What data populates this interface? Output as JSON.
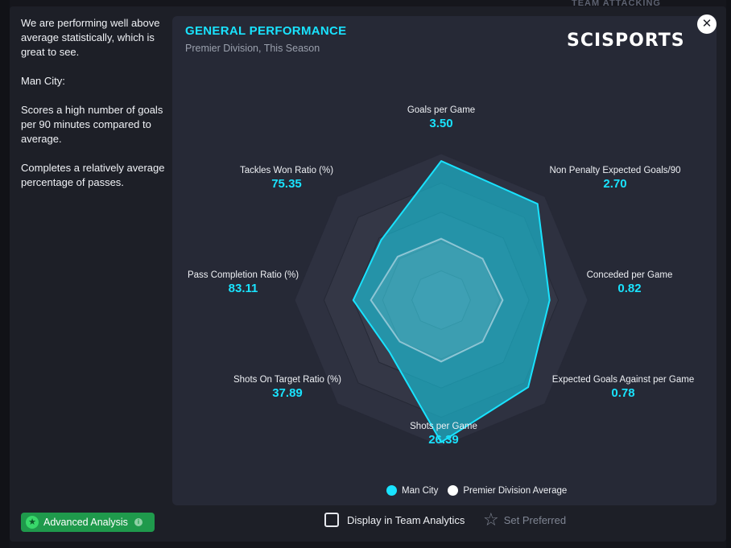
{
  "backdrop": {
    "fragment_text": "TEAM ATTACKING"
  },
  "insight": {
    "paragraphs": [
      "We are performing well above average statistically, which is great to see.",
      "Man City:",
      "Scores a high number of goals per 90 minutes compared to average.",
      "Completes a relatively average percentage of passes."
    ]
  },
  "card": {
    "title": "GENERAL PERFORMANCE",
    "subtitle": "Premier Division, This Season",
    "brand": "SCISPORTS"
  },
  "close_icon": "close-icon",
  "chart_data": {
    "type": "radar",
    "axes": [
      {
        "name": "Goals per Game",
        "value": "3.50",
        "team_pct": 0.95,
        "avg_pct": 0.42
      },
      {
        "name": "Non Penalty Expected Goals/90",
        "value": "2.70",
        "team_pct": 0.93,
        "avg_pct": 0.4
      },
      {
        "name": "Conceded per Game",
        "value": "0.82",
        "team_pct": 0.74,
        "avg_pct": 0.42
      },
      {
        "name": "Expected Goals Against per Game",
        "value": "0.78",
        "team_pct": 0.84,
        "avg_pct": 0.4
      },
      {
        "name": "Shots per Game",
        "value": "26.39",
        "team_pct": 0.97,
        "avg_pct": 0.42
      },
      {
        "name": "Shots On Target Ratio (%)",
        "value": "37.89",
        "team_pct": 0.5,
        "avg_pct": 0.4
      },
      {
        "name": "Pass Completion Ratio (%)",
        "value": "83.11",
        "team_pct": 0.6,
        "avg_pct": 0.48
      },
      {
        "name": "Tackles Won Ratio (%)",
        "value": "75.35",
        "team_pct": 0.58,
        "avg_pct": 0.42
      }
    ],
    "series": [
      {
        "name": "Man City",
        "color": "#19e3ff"
      },
      {
        "name": "Premier Division Average",
        "color": "#ffffff"
      }
    ]
  },
  "footer": {
    "advanced_label": "Advanced Analysis",
    "display_label": "Display in Team Analytics",
    "set_preferred_label": "Set Preferred"
  }
}
